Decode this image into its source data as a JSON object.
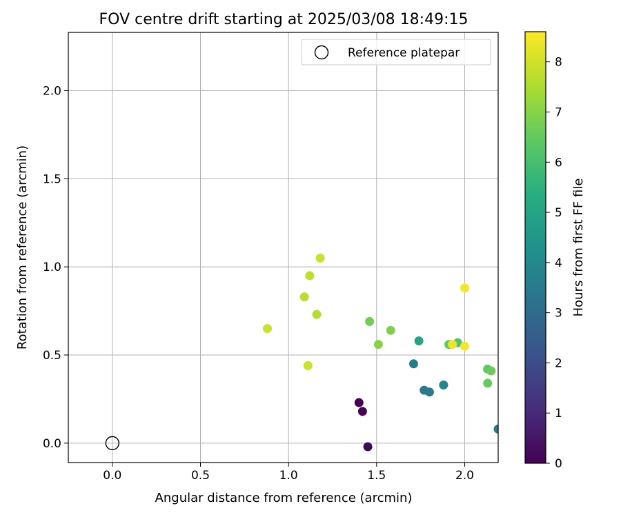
{
  "chart_data": {
    "type": "scatter",
    "title": "FOV centre drift starting at 2025/03/08 18:49:15",
    "xlabel": "Angular distance from reference (arcmin)",
    "ylabel": "Rotation from reference (arcmin)",
    "xlim": [
      -0.25,
      2.19
    ],
    "ylim": [
      -0.11,
      2.33
    ],
    "xticks": [
      "0.0",
      "0.5",
      "1.0",
      "1.5",
      "2.0"
    ],
    "xtick_values": [
      0.0,
      0.5,
      1.0,
      1.5,
      2.0
    ],
    "yticks": [
      "0.0",
      "0.5",
      "1.0",
      "1.5",
      "2.0"
    ],
    "ytick_values": [
      0.0,
      0.5,
      1.0,
      1.5,
      2.0
    ],
    "grid": true,
    "colormap": "viridis",
    "colorbar": {
      "label": "Hours from first FF file",
      "range": [
        0,
        8.6
      ],
      "ticks": [
        "0",
        "1",
        "2",
        "3",
        "4",
        "5",
        "6",
        "7",
        "8"
      ],
      "tick_values": [
        0,
        1,
        2,
        3,
        4,
        5,
        6,
        7,
        8
      ]
    },
    "legend": {
      "placement": "top-right",
      "entries": [
        "Reference platepar"
      ]
    },
    "reference_point": {
      "x": 0.0,
      "y": 0.0
    },
    "points": [
      {
        "x": 1.4,
        "y": 0.23,
        "hours": 0.0
      },
      {
        "x": 1.42,
        "y": 0.18,
        "hours": 0.1
      },
      {
        "x": 1.45,
        "y": -0.02,
        "hours": 0.15
      },
      {
        "x": 2.19,
        "y": 0.08,
        "hours": 3.4
      },
      {
        "x": 1.71,
        "y": 0.45,
        "hours": 3.6
      },
      {
        "x": 1.77,
        "y": 0.3,
        "hours": 3.4
      },
      {
        "x": 1.8,
        "y": 0.29,
        "hours": 3.5
      },
      {
        "x": 1.88,
        "y": 0.33,
        "hours": 3.8
      },
      {
        "x": 1.74,
        "y": 0.58,
        "hours": 5.0
      },
      {
        "x": 1.96,
        "y": 0.57,
        "hours": 6.2
      },
      {
        "x": 1.91,
        "y": 0.56,
        "hours": 6.5
      },
      {
        "x": 2.13,
        "y": 0.42,
        "hours": 6.4
      },
      {
        "x": 2.15,
        "y": 0.41,
        "hours": 6.6
      },
      {
        "x": 2.13,
        "y": 0.34,
        "hours": 6.5
      },
      {
        "x": 1.46,
        "y": 0.69,
        "hours": 6.7
      },
      {
        "x": 1.51,
        "y": 0.56,
        "hours": 7.0
      },
      {
        "x": 1.58,
        "y": 0.64,
        "hours": 6.9
      },
      {
        "x": 1.16,
        "y": 0.73,
        "hours": 7.6
      },
      {
        "x": 1.09,
        "y": 0.83,
        "hours": 7.7
      },
      {
        "x": 1.12,
        "y": 0.95,
        "hours": 7.8
      },
      {
        "x": 1.18,
        "y": 1.05,
        "hours": 7.9
      },
      {
        "x": 0.88,
        "y": 0.65,
        "hours": 7.9
      },
      {
        "x": 1.11,
        "y": 0.44,
        "hours": 7.9
      },
      {
        "x": 2.0,
        "y": 0.88,
        "hours": 8.5
      },
      {
        "x": 1.93,
        "y": 0.56,
        "hours": 8.4
      },
      {
        "x": 2.0,
        "y": 0.55,
        "hours": 8.5
      }
    ]
  }
}
